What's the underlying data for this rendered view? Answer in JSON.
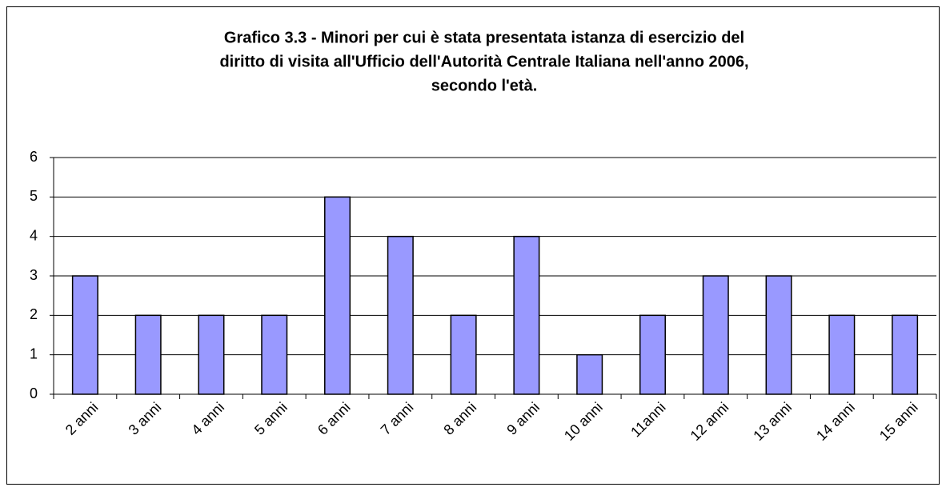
{
  "chart_data": {
    "type": "bar",
    "title": [
      "Grafico 3.3 - Minori per cui è stata presentata istanza di esercizio del",
      "diritto di visita all'Ufficio dell'Autorità Centrale Italiana nell'anno 2006,",
      "secondo l'età."
    ],
    "categories": [
      "2 anni",
      "3 anni",
      "4 anni",
      "5 anni",
      "6 anni",
      "7 anni",
      "8 anni",
      "9 anni",
      "10 anni",
      "11anni",
      "12 anni",
      "13 anni",
      "14 anni",
      "15 anni"
    ],
    "values": [
      3,
      2,
      2,
      2,
      5,
      4,
      2,
      4,
      1,
      2,
      3,
      3,
      2,
      2
    ],
    "color": "#9999ff",
    "ylim": [
      0,
      6
    ],
    "yticks": [
      0,
      1,
      2,
      3,
      4,
      5,
      6
    ],
    "grid": true
  }
}
